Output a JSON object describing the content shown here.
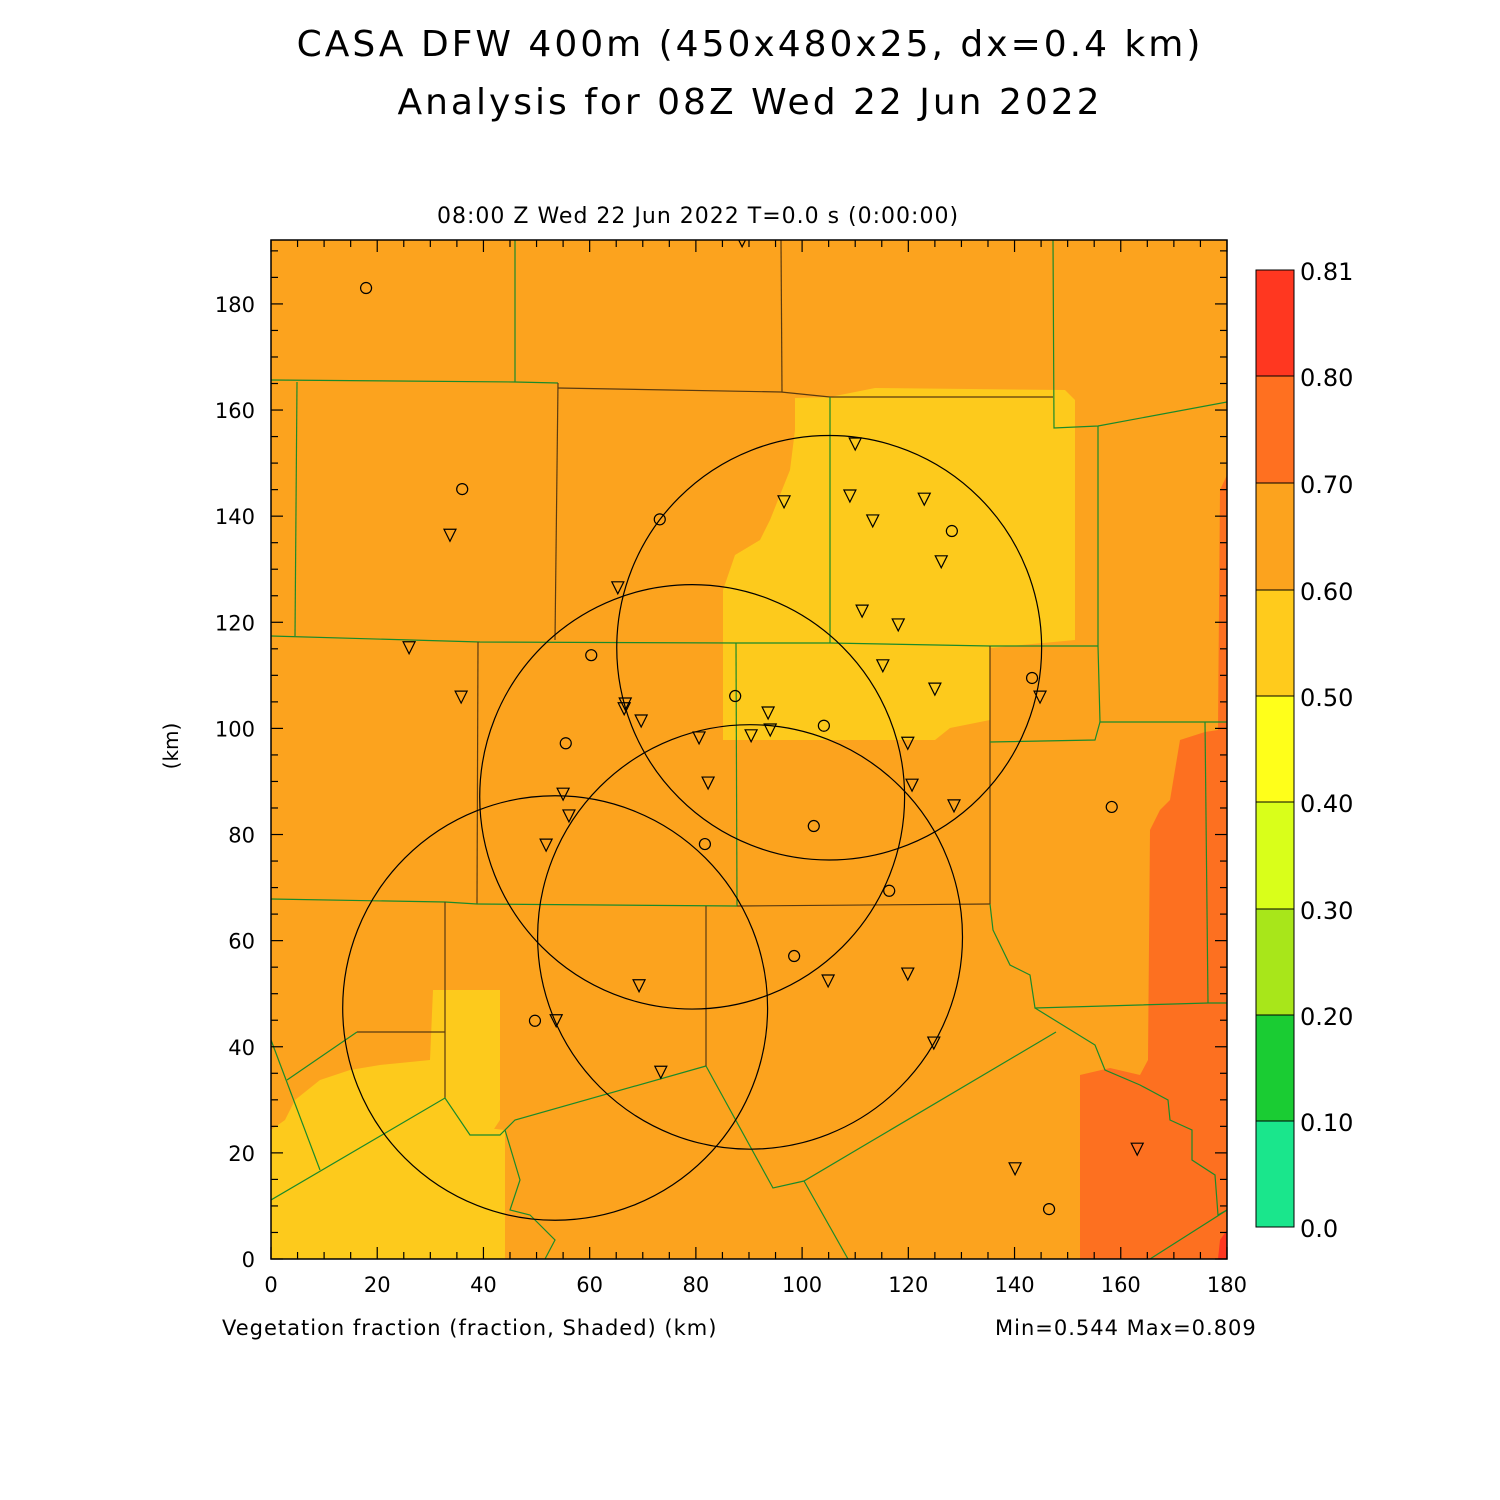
{
  "title_line1": "CASA DFW 400m (450x480x25, dx=0.4 km)",
  "title_line2": "Analysis for 08Z Wed 22 Jun 2022",
  "subtitle": "08:00 Z Wed 22 Jun 2022    T=0.0 s (0:00:00)",
  "footer": {
    "field_label": "Vegetation fraction (fraction, Shaded)   (km)",
    "minmax": "Min=0.544 Max=0.809"
  },
  "chart_data": {
    "type": "heatmap",
    "title": "CASA DFW 400m (450x480x25, dx=0.4 km)",
    "xlabel": "(km)",
    "ylabel": "(km)",
    "xlim": [
      0,
      180
    ],
    "ylim": [
      0,
      192
    ],
    "xticks": [
      "0",
      "20",
      "40",
      "60",
      "80",
      "100",
      "120",
      "140",
      "160",
      "180"
    ],
    "yticks": [
      "0",
      "20",
      "40",
      "60",
      "80",
      "100",
      "120",
      "140",
      "160",
      "180"
    ],
    "field": "Vegetation fraction",
    "units": "fraction",
    "min": 0.544,
    "max": 0.809,
    "colorbar": {
      "levels": [
        "0.0",
        "0.10",
        "0.20",
        "0.30",
        "0.40",
        "0.50",
        "0.60",
        "0.70",
        "0.80",
        "0.81"
      ],
      "colors": [
        "#1ae68c",
        "#1acc33",
        "#a8e61a",
        "#d9ff1a",
        "#ffff1a",
        "#ffcb1c",
        "#fca31e",
        "#ff7020",
        "#ff3720"
      ]
    },
    "radar_rings_km": [
      {
        "cx": 105.1,
        "cy": 115.2,
        "r": 40
      },
      {
        "cx": 79.3,
        "cy": 87.1,
        "r": 40
      },
      {
        "cx": 90.2,
        "cy": 60.7,
        "r": 40
      },
      {
        "cx": 53.5,
        "cy": 47.3,
        "r": 40
      }
    ],
    "stations_circle": [
      [
        17.9,
        183.0
      ],
      [
        36.0,
        145.1
      ],
      [
        73.2,
        139.4
      ],
      [
        128.2,
        137.2
      ],
      [
        60.3,
        113.8
      ],
      [
        143.3,
        109.5
      ],
      [
        87.4,
        106.1
      ],
      [
        55.5,
        97.2
      ],
      [
        104.1,
        100.5
      ],
      [
        102.2,
        81.6
      ],
      [
        81.7,
        78.2
      ],
      [
        116.4,
        69.4
      ],
      [
        98.5,
        57.1
      ],
      [
        49.7,
        44.9
      ],
      [
        158.3,
        85.2
      ],
      [
        146.5,
        9.4
      ]
    ],
    "stations_triangle": [
      [
        88.7,
        191.9
      ],
      [
        110.0,
        153.6
      ],
      [
        96.6,
        142.7
      ],
      [
        109.0,
        143.8
      ],
      [
        123.0,
        143.2
      ],
      [
        113.3,
        139.1
      ],
      [
        126.2,
        131.4
      ],
      [
        65.3,
        126.5
      ],
      [
        111.3,
        122.1
      ],
      [
        118.1,
        119.5
      ],
      [
        26.0,
        115.2
      ],
      [
        33.7,
        136.4
      ],
      [
        115.2,
        111.8
      ],
      [
        125.0,
        107.4
      ],
      [
        144.8,
        105.9
      ],
      [
        35.8,
        105.9
      ],
      [
        66.7,
        104.6
      ],
      [
        66.5,
        103.7
      ],
      [
        69.7,
        101.4
      ],
      [
        93.6,
        102.9
      ],
      [
        94.0,
        99.7
      ],
      [
        90.4,
        98.6
      ],
      [
        80.6,
        98.2
      ],
      [
        119.9,
        97.2
      ],
      [
        82.3,
        89.7
      ],
      [
        120.7,
        89.3
      ],
      [
        128.6,
        85.4
      ],
      [
        55.0,
        87.6
      ],
      [
        56.1,
        83.5
      ],
      [
        51.8,
        78.0
      ],
      [
        69.3,
        51.5
      ],
      [
        104.9,
        52.4
      ],
      [
        119.9,
        53.7
      ],
      [
        53.7,
        44.9
      ],
      [
        124.8,
        40.7
      ],
      [
        73.4,
        35.2
      ],
      [
        140.1,
        17.0
      ],
      [
        163.1,
        20.7
      ]
    ]
  }
}
